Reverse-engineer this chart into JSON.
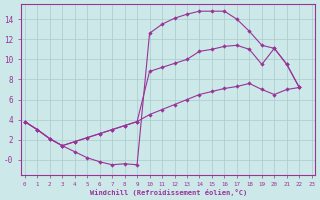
{
  "xlabel": "Windchill (Refroidissement éolien,°C)",
  "bg_color": "#cce8e8",
  "grid_color": "#aacccc",
  "line_color": "#993399",
  "line1_x": [
    0,
    1,
    2,
    3,
    4,
    5,
    6,
    7,
    8,
    9,
    10,
    11,
    12,
    13,
    14,
    15,
    16,
    17,
    18,
    19,
    20,
    21,
    22
  ],
  "line1_y": [
    3.8,
    3.0,
    2.1,
    1.4,
    0.8,
    0.2,
    -0.2,
    -0.5,
    -0.4,
    -0.5,
    12.6,
    13.5,
    14.1,
    14.5,
    14.8,
    14.8,
    14.8,
    14.0,
    12.8,
    11.4,
    11.1,
    9.5,
    7.2
  ],
  "line2_x": [
    0,
    1,
    2,
    3,
    4,
    5,
    6,
    7,
    8,
    9,
    10,
    11,
    12,
    13,
    14,
    15,
    16,
    17,
    18,
    19,
    20,
    21,
    22
  ],
  "line2_y": [
    3.8,
    3.0,
    2.1,
    1.4,
    1.8,
    2.2,
    2.6,
    3.0,
    3.4,
    3.8,
    8.8,
    9.2,
    9.6,
    10.0,
    10.8,
    11.0,
    11.3,
    11.4,
    11.0,
    9.5,
    11.1,
    9.5,
    7.2
  ],
  "line3_x": [
    0,
    1,
    2,
    3,
    4,
    5,
    6,
    7,
    8,
    9,
    10,
    11,
    12,
    13,
    14,
    15,
    16,
    17,
    18,
    19,
    20,
    21,
    22
  ],
  "line3_y": [
    3.8,
    3.0,
    2.1,
    1.4,
    1.8,
    2.2,
    2.6,
    3.0,
    3.4,
    3.8,
    4.5,
    5.0,
    5.5,
    6.0,
    6.5,
    6.8,
    7.1,
    7.3,
    7.6,
    7.0,
    6.5,
    7.0,
    7.2
  ],
  "xlim": [
    -0.3,
    23.3
  ],
  "ylim": [
    -1.5,
    15.5
  ],
  "xticks": [
    0,
    1,
    2,
    3,
    4,
    5,
    6,
    7,
    8,
    9,
    10,
    11,
    12,
    13,
    14,
    15,
    16,
    17,
    18,
    19,
    20,
    21,
    22,
    23
  ],
  "yticks": [
    0,
    2,
    4,
    6,
    8,
    10,
    12,
    14
  ],
  "ytick_labels": [
    "-0",
    "2",
    "4",
    "6",
    "8",
    "10",
    "12",
    "14"
  ]
}
